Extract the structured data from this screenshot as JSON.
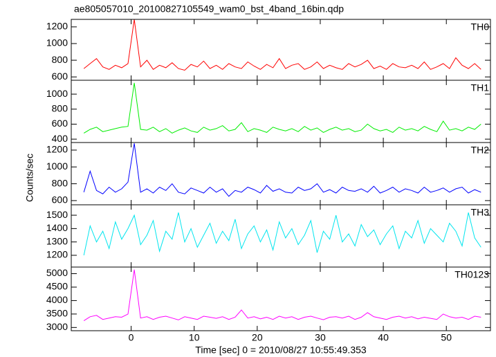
{
  "title": "ae805057010_20100827105549_wam0_bst_4band_16bin.qdp",
  "ylabel": "Counts/sec",
  "xlabel": "Time [sec] 0 = 2010/08/27 10:55:49.353",
  "chart_data": [
    {
      "type": "line",
      "xlim": [
        -9.5,
        57
      ],
      "xticks": [
        0,
        10,
        20,
        30,
        40,
        50
      ],
      "ylim": [
        560,
        1290
      ],
      "yticks": [
        600,
        800,
        1000,
        1200
      ],
      "x": [
        -7.5,
        -6.5,
        -5.5,
        -4.5,
        -3.5,
        -2.5,
        -1.5,
        -0.5,
        0.5,
        1.5,
        2.5,
        3.5,
        4.5,
        5.5,
        6.5,
        7.5,
        8.5,
        9.5,
        10.5,
        11.5,
        12.5,
        13.5,
        14.5,
        15.5,
        16.5,
        17.5,
        18.5,
        19.5,
        20.5,
        21.5,
        22.5,
        23.5,
        24.5,
        25.5,
        26.5,
        27.5,
        28.5,
        29.5,
        30.5,
        31.5,
        32.5,
        33.5,
        34.5,
        35.5,
        36.5,
        37.5,
        38.5,
        39.5,
        40.5,
        41.5,
        42.5,
        43.5,
        44.5,
        45.5,
        46.5,
        47.5,
        48.5,
        49.5,
        50.5,
        51.5,
        52.5,
        53.5,
        54.5,
        55.5
      ],
      "series": [
        {
          "name": "TH0",
          "color": "#ff0000",
          "values": [
            700,
            760,
            820,
            720,
            690,
            740,
            710,
            760,
            1290,
            720,
            800,
            690,
            740,
            710,
            770,
            700,
            680,
            750,
            720,
            790,
            700,
            740,
            690,
            760,
            720,
            700,
            780,
            730,
            690,
            750,
            710,
            820,
            700,
            740,
            760,
            690,
            720,
            780,
            700,
            740,
            710,
            690,
            760,
            720,
            750,
            800,
            700,
            730,
            690,
            760,
            720,
            710,
            740,
            700,
            780,
            690,
            720,
            760,
            700,
            830,
            740,
            700,
            760,
            690
          ]
        }
      ]
    },
    {
      "type": "line",
      "xlim": [
        -9.5,
        57
      ],
      "xticks": [
        0,
        10,
        20,
        30,
        40,
        50
      ],
      "ylim": [
        355,
        1185
      ],
      "yticks": [
        400,
        600,
        800,
        1000
      ],
      "x": [
        -7.5,
        -6.5,
        -5.5,
        -4.5,
        -3.5,
        -2.5,
        -1.5,
        -0.5,
        0.5,
        1.5,
        2.5,
        3.5,
        4.5,
        5.5,
        6.5,
        7.5,
        8.5,
        9.5,
        10.5,
        11.5,
        12.5,
        13.5,
        14.5,
        15.5,
        16.5,
        17.5,
        18.5,
        19.5,
        20.5,
        21.5,
        22.5,
        23.5,
        24.5,
        25.5,
        26.5,
        27.5,
        28.5,
        29.5,
        30.5,
        31.5,
        32.5,
        33.5,
        34.5,
        35.5,
        36.5,
        37.5,
        38.5,
        39.5,
        40.5,
        41.5,
        42.5,
        43.5,
        44.5,
        45.5,
        46.5,
        47.5,
        48.5,
        49.5,
        50.5,
        51.5,
        52.5,
        53.5,
        54.5,
        55.5
      ],
      "series": [
        {
          "name": "TH1",
          "color": "#00ee00",
          "values": [
            480,
            530,
            560,
            500,
            520,
            540,
            560,
            570,
            1150,
            530,
            520,
            560,
            500,
            540,
            480,
            520,
            550,
            510,
            490,
            560,
            520,
            540,
            580,
            510,
            530,
            620,
            500,
            540,
            520,
            490,
            560,
            530,
            510,
            540,
            500,
            570,
            520,
            550,
            490,
            530,
            560,
            520,
            540,
            500,
            520,
            600,
            540,
            510,
            530,
            490,
            560,
            520,
            540,
            510,
            570,
            530,
            500,
            640,
            520,
            540,
            510,
            560,
            530,
            600
          ]
        }
      ]
    },
    {
      "type": "line",
      "xlim": [
        -9.5,
        57
      ],
      "xticks": [
        0,
        10,
        20,
        30,
        40,
        50
      ],
      "ylim": [
        550,
        1290
      ],
      "yticks": [
        600,
        800,
        1000,
        1200
      ],
      "x": [
        -7.5,
        -6.5,
        -5.5,
        -4.5,
        -3.5,
        -2.5,
        -1.5,
        -0.5,
        0.5,
        1.5,
        2.5,
        3.5,
        4.5,
        5.5,
        6.5,
        7.5,
        8.5,
        9.5,
        10.5,
        11.5,
        12.5,
        13.5,
        14.5,
        15.5,
        16.5,
        17.5,
        18.5,
        19.5,
        20.5,
        21.5,
        22.5,
        23.5,
        24.5,
        25.5,
        26.5,
        27.5,
        28.5,
        29.5,
        30.5,
        31.5,
        32.5,
        33.5,
        34.5,
        35.5,
        36.5,
        37.5,
        38.5,
        39.5,
        40.5,
        41.5,
        42.5,
        43.5,
        44.5,
        45.5,
        46.5,
        47.5,
        48.5,
        49.5,
        50.5,
        51.5,
        52.5,
        53.5,
        54.5,
        55.5
      ],
      "series": [
        {
          "name": "TH2",
          "color": "#0000ff",
          "values": [
            700,
            950,
            720,
            680,
            760,
            700,
            740,
            820,
            1280,
            700,
            740,
            690,
            760,
            720,
            800,
            700,
            680,
            750,
            720,
            690,
            760,
            700,
            740,
            650,
            720,
            700,
            760,
            730,
            690,
            780,
            710,
            740,
            700,
            690,
            760,
            720,
            740,
            800,
            700,
            730,
            690,
            760,
            720,
            710,
            740,
            700,
            770,
            690,
            720,
            760,
            700,
            740,
            720,
            690,
            760,
            700,
            720,
            750,
            700,
            740,
            760,
            690,
            730,
            700
          ]
        }
      ]
    },
    {
      "type": "line",
      "xlim": [
        -9.5,
        57
      ],
      "xticks": [
        0,
        10,
        20,
        30,
        40,
        50
      ],
      "ylim": [
        1112,
        1578
      ],
      "yticks": [
        1200,
        1300,
        1400,
        1500
      ],
      "x": [
        -7.5,
        -6.5,
        -5.5,
        -4.5,
        -3.5,
        -2.5,
        -1.5,
        -0.5,
        0.5,
        1.5,
        2.5,
        3.5,
        4.5,
        5.5,
        6.5,
        7.5,
        8.5,
        9.5,
        10.5,
        11.5,
        12.5,
        13.5,
        14.5,
        15.5,
        16.5,
        17.5,
        18.5,
        19.5,
        20.5,
        21.5,
        22.5,
        23.5,
        24.5,
        25.5,
        26.5,
        27.5,
        28.5,
        29.5,
        30.5,
        31.5,
        32.5,
        33.5,
        34.5,
        35.5,
        36.5,
        37.5,
        38.5,
        39.5,
        40.5,
        41.5,
        42.5,
        43.5,
        44.5,
        45.5,
        46.5,
        47.5,
        48.5,
        49.5,
        50.5,
        51.5,
        52.5,
        53.5,
        54.5,
        55.5
      ],
      "series": [
        {
          "name": "TH3",
          "color": "#00e5ee",
          "values": [
            1200,
            1420,
            1300,
            1380,
            1250,
            1450,
            1320,
            1400,
            1500,
            1280,
            1350,
            1460,
            1230,
            1380,
            1320,
            1520,
            1300,
            1400,
            1260,
            1350,
            1440,
            1290,
            1380,
            1310,
            1470,
            1250,
            1360,
            1420,
            1300,
            1390,
            1240,
            1450,
            1330,
            1400,
            1280,
            1350,
            1460,
            1220,
            1380,
            1320,
            1500,
            1300,
            1360,
            1270,
            1430,
            1340,
            1390,
            1280,
            1360,
            1420,
            1250,
            1380,
            1330,
            1460,
            1290,
            1400,
            1350,
            1300,
            1440,
            1380,
            1270,
            1520,
            1330,
            1260
          ]
        }
      ]
    },
    {
      "type": "line",
      "xlim": [
        -9.5,
        57
      ],
      "xticks": [
        0,
        10,
        20,
        30,
        40,
        50
      ],
      "ylim": [
        2880,
        5245
      ],
      "yticks": [
        3000,
        3500,
        4000,
        4500,
        5000
      ],
      "x": [
        -7.5,
        -6.5,
        -5.5,
        -4.5,
        -3.5,
        -2.5,
        -1.5,
        -0.5,
        0.5,
        1.5,
        2.5,
        3.5,
        4.5,
        5.5,
        6.5,
        7.5,
        8.5,
        9.5,
        10.5,
        11.5,
        12.5,
        13.5,
        14.5,
        15.5,
        16.5,
        17.5,
        18.5,
        19.5,
        20.5,
        21.5,
        22.5,
        23.5,
        24.5,
        25.5,
        26.5,
        27.5,
        28.5,
        29.5,
        30.5,
        31.5,
        32.5,
        33.5,
        34.5,
        35.5,
        36.5,
        37.5,
        38.5,
        39.5,
        40.5,
        41.5,
        42.5,
        43.5,
        44.5,
        45.5,
        46.5,
        47.5,
        48.5,
        49.5,
        50.5,
        51.5,
        52.5,
        53.5,
        54.5,
        55.5
      ],
      "series": [
        {
          "name": "TH0123",
          "color": "#ff00ff",
          "values": [
            3250,
            3400,
            3450,
            3300,
            3350,
            3400,
            3380,
            3500,
            5150,
            3350,
            3400,
            3300,
            3380,
            3420,
            3350,
            3280,
            3400,
            3350,
            3300,
            3420,
            3380,
            3340,
            3400,
            3300,
            3380,
            3650,
            3350,
            3400,
            3320,
            3380,
            3300,
            3420,
            3350,
            3400,
            3300,
            3380,
            3420,
            3350,
            3290,
            3380,
            3400,
            3350,
            3420,
            3300,
            3380,
            3550,
            3400,
            3350,
            3300,
            3380,
            3420,
            3350,
            3400,
            3320,
            3380,
            3340,
            3300,
            3500,
            3400,
            3350,
            3380,
            3300,
            3420,
            3380
          ]
        }
      ]
    }
  ]
}
